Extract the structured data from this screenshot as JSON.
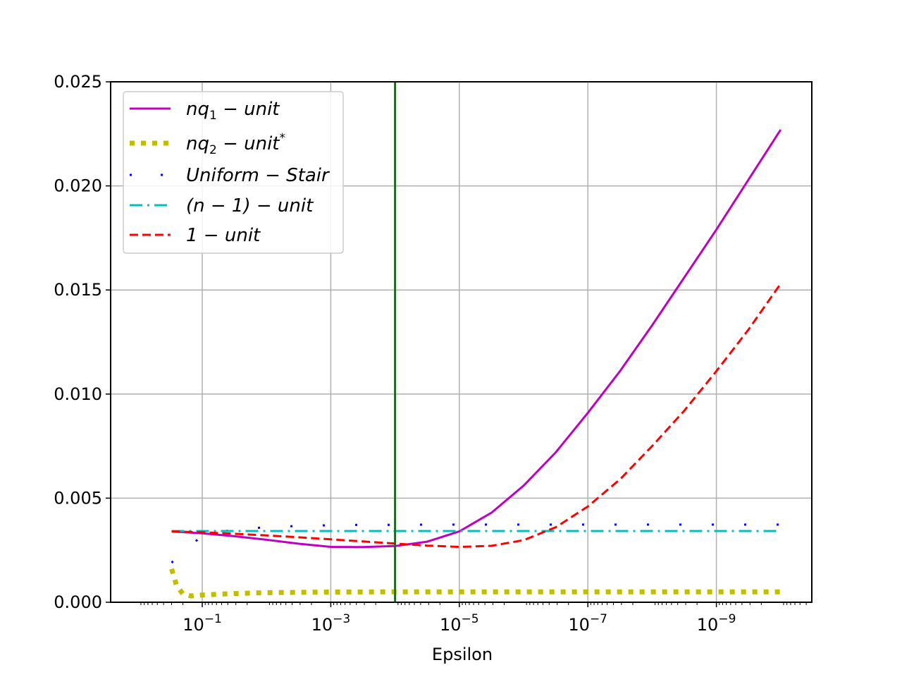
{
  "chart_data": {
    "type": "line",
    "title": "",
    "xlabel": "Epsilon",
    "ylabel": "",
    "xscale": "log",
    "xaxis_inverted": true,
    "xlim": [
      1.0,
      1e-10
    ],
    "ylim": [
      0,
      0.025
    ],
    "grid": true,
    "legend_position": "upper-left",
    "x_ticks": [
      {
        "value": 0.1,
        "base": "10",
        "exp": "−1"
      },
      {
        "value": 0.001,
        "base": "10",
        "exp": "−3"
      },
      {
        "value": 1e-05,
        "base": "10",
        "exp": "−5"
      },
      {
        "value": 1e-07,
        "base": "10",
        "exp": "−7"
      },
      {
        "value": 1e-09,
        "base": "10",
        "exp": "−9"
      }
    ],
    "y_ticks": [
      {
        "value": 0.0,
        "label": "0.000"
      },
      {
        "value": 0.005,
        "label": "0.005"
      },
      {
        "value": 0.01,
        "label": "0.010"
      },
      {
        "value": 0.015,
        "label": "0.015"
      },
      {
        "value": 0.02,
        "label": "0.020"
      },
      {
        "value": 0.025,
        "label": "0.025"
      }
    ],
    "vertical_line": {
      "x": 0.0001,
      "color": "#008000"
    },
    "series": [
      {
        "name": "nq1-unit",
        "legend_main": "nq",
        "legend_sub": "1",
        "legend_rest": " − unit",
        "color": "#bf00bf",
        "style": "solid",
        "x": [
          0.3,
          0.1,
          0.0316,
          0.01,
          0.00316,
          0.001,
          0.000316,
          0.0001,
          3.16e-05,
          1e-05,
          3.16e-06,
          1e-06,
          3.16e-07,
          1e-07,
          3.16e-08,
          1e-08,
          3.16e-09,
          1e-09,
          3.16e-10,
          1e-10
        ],
        "y": [
          0.0034,
          0.00331,
          0.00317,
          0.003,
          0.00281,
          0.00266,
          0.00265,
          0.0027,
          0.00291,
          0.0034,
          0.0043,
          0.0056,
          0.0072,
          0.0091,
          0.0111,
          0.0133,
          0.0156,
          0.0179,
          0.0203,
          0.0227
        ]
      },
      {
        "name": "nq2-unit*",
        "legend_main": "nq",
        "legend_sub": "2",
        "legend_rest": " − unit",
        "legend_sup": "*",
        "color": "#bfbf00",
        "style": "dotted-thick",
        "x": [
          0.3,
          0.25,
          0.2,
          0.15,
          0.1,
          0.0316,
          0.01,
          0.001,
          0.0001,
          1e-05,
          1e-06,
          1e-07,
          1e-08,
          1e-09,
          1e-10
        ],
        "y": [
          0.0016,
          0.0008,
          0.0004,
          0.0003,
          0.00035,
          0.00042,
          0.00046,
          0.00049,
          0.0005,
          0.0005,
          0.0005,
          0.0005,
          0.0005,
          0.0005,
          0.0005
        ]
      },
      {
        "name": "Uniform-Stair",
        "legend_main": "Uniform − Stair",
        "color": "#0000ff",
        "style": "dotted-sparse",
        "x": [
          0.3,
          0.2,
          0.1,
          0.0316,
          0.01,
          0.00316,
          0.001,
          0.000316,
          0.0001,
          3.16e-05,
          1e-05,
          3.16e-06,
          1e-06,
          3.16e-07,
          1e-07,
          3.16e-08,
          1e-08,
          3.16e-09,
          1e-09,
          3.16e-10,
          1e-10
        ],
        "y": [
          0.0019,
          0.0024,
          0.0032,
          0.0035,
          0.0036,
          0.00367,
          0.0037,
          0.00372,
          0.00372,
          0.00373,
          0.00373,
          0.00373,
          0.00373,
          0.00373,
          0.00373,
          0.00373,
          0.00373,
          0.00373,
          0.00373,
          0.00373,
          0.00373
        ]
      },
      {
        "name": "(n-1)-unit",
        "legend_main": "(n − 1) − unit",
        "color": "#00bfbf",
        "style": "dashdot",
        "x": [
          0.3,
          1e-10
        ],
        "y": [
          0.00342,
          0.00342
        ]
      },
      {
        "name": "1-unit",
        "legend_main": "1 − unit",
        "color": "#ff0000",
        "style": "dashed",
        "x": [
          0.3,
          0.1,
          0.0316,
          0.01,
          0.00316,
          0.001,
          0.000316,
          0.0001,
          3.16e-05,
          1e-05,
          3.16e-06,
          1e-06,
          3.16e-07,
          1e-07,
          3.16e-08,
          1e-08,
          3.16e-09,
          1e-09,
          3.16e-10,
          1e-10
        ],
        "y": [
          0.0034,
          0.00336,
          0.00329,
          0.00321,
          0.00312,
          0.00302,
          0.00292,
          0.00282,
          0.00272,
          0.00266,
          0.00271,
          0.00298,
          0.0036,
          0.0046,
          0.0059,
          0.0075,
          0.0092,
          0.0111,
          0.0131,
          0.0153
        ]
      }
    ]
  }
}
